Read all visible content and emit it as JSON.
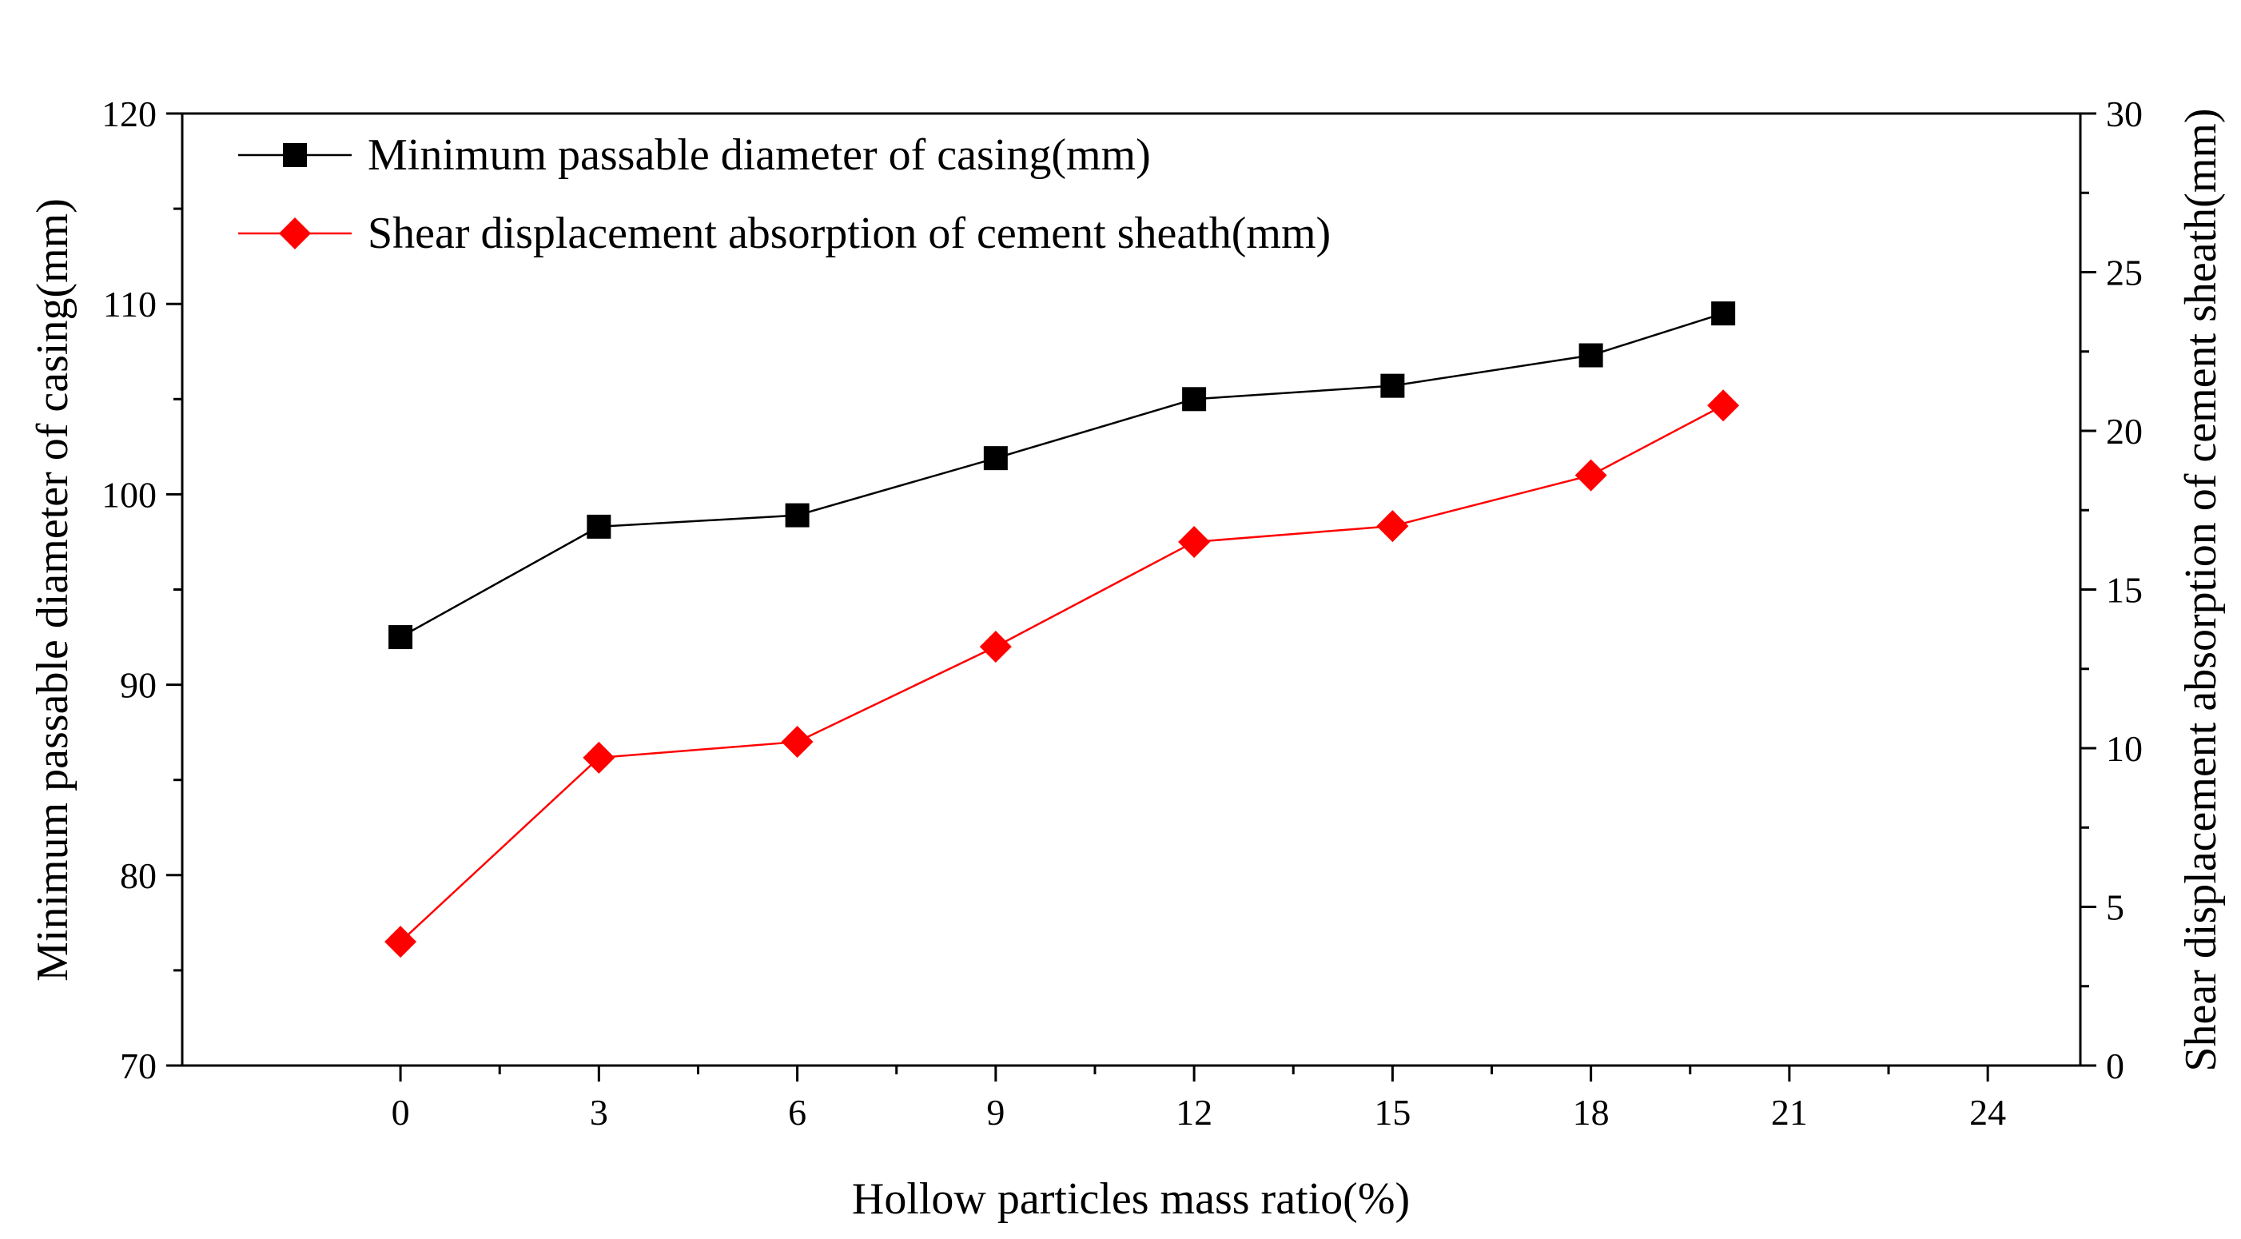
{
  "chart_data": {
    "type": "line",
    "title": "",
    "xlabel": "Hollow particles mass ratio(%)",
    "ylabel_left": "Minimum passable diameter of casing(mm)",
    "ylabel_right": "Shear displacement absorption of cement sheath(mm)",
    "xlim": [
      -3.3,
      25.4
    ],
    "ylim_left": [
      70,
      120
    ],
    "ylim_right": [
      0,
      30
    ],
    "x_ticks": [
      0,
      3,
      6,
      9,
      12,
      15,
      18,
      21,
      24
    ],
    "y_left_ticks": [
      70,
      80,
      90,
      100,
      110,
      120
    ],
    "y_right_ticks": [
      0,
      5,
      10,
      15,
      20,
      25,
      30
    ],
    "x": [
      0,
      3,
      6,
      9,
      12,
      15,
      18,
      20
    ],
    "series": [
      {
        "name": "Minimum passable diameter of casing(mm)",
        "axis": "left",
        "marker": "square",
        "color": "#000000",
        "values": [
          92.5,
          98.3,
          98.9,
          101.9,
          105.0,
          105.7,
          107.3,
          109.5
        ]
      },
      {
        "name": "Shear displacement absorption of cement sheath(mm)",
        "axis": "right",
        "marker": "diamond",
        "color": "#ff0000",
        "values": [
          3.9,
          9.7,
          10.2,
          13.2,
          16.5,
          17.0,
          18.6,
          20.8
        ]
      }
    ],
    "legend_position": "top-left",
    "grid": false
  }
}
